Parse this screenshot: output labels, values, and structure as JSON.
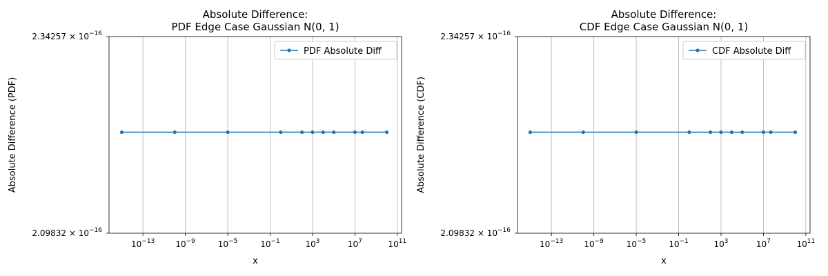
{
  "chart_data": [
    {
      "type": "line",
      "title": "Absolute Difference:",
      "subtitle": "PDF Edge Case Gaussian N(0, 1)",
      "xlabel": "x",
      "ylabel": "Absolute Difference (PDF)",
      "xscale": "log",
      "yscale": "log",
      "xlim": [
        6.3e-17,
        250000000000.0
      ],
      "ylim": [
        2.09832e-16,
        2.34257e-16
      ],
      "ytick_labels": [
        "2.34257",
        "2.09832"
      ],
      "ytick_exponent": "-16",
      "xticks": [
        -13,
        -9,
        -5,
        -1,
        3,
        7,
        11
      ],
      "grid": "x-major",
      "legend_position": "upper right",
      "series": [
        {
          "name": "PDF Absolute Diff",
          "color": "#1f77b4",
          "marker": "point",
          "x": [
            1e-15,
            1e-10,
            1e-05,
            1,
            100,
            1000,
            10000,
            100000,
            10000000,
            50000000,
            10000000000
          ],
          "y": [
            2.22045e-16,
            2.22045e-16,
            2.22045e-16,
            2.22045e-16,
            2.22045e-16,
            2.22045e-16,
            2.22045e-16,
            2.22045e-16,
            2.22045e-16,
            2.22045e-16,
            2.22045e-16
          ]
        }
      ]
    },
    {
      "type": "line",
      "title": "Absolute Difference:",
      "subtitle": "CDF Edge Case Gaussian N(0, 1)",
      "xlabel": "x",
      "ylabel": "Absolute Difference (CDF)",
      "xscale": "log",
      "yscale": "log",
      "xlim": [
        6.3e-17,
        250000000000.0
      ],
      "ylim": [
        2.09832e-16,
        2.34257e-16
      ],
      "ytick_labels": [
        "2.34257",
        "2.09832"
      ],
      "ytick_exponent": "-16",
      "xticks": [
        -13,
        -9,
        -5,
        -1,
        3,
        7,
        11
      ],
      "grid": "x-major",
      "legend_position": "upper right",
      "series": [
        {
          "name": "CDF Absolute Diff",
          "color": "#1f77b4",
          "marker": "point",
          "x": [
            1e-15,
            1e-10,
            1e-05,
            1,
            100,
            1000,
            10000,
            100000,
            10000000,
            50000000,
            10000000000
          ],
          "y": [
            2.22045e-16,
            2.22045e-16,
            2.22045e-16,
            2.22045e-16,
            2.22045e-16,
            2.22045e-16,
            2.22045e-16,
            2.22045e-16,
            2.22045e-16,
            2.22045e-16,
            2.22045e-16
          ]
        }
      ]
    }
  ]
}
